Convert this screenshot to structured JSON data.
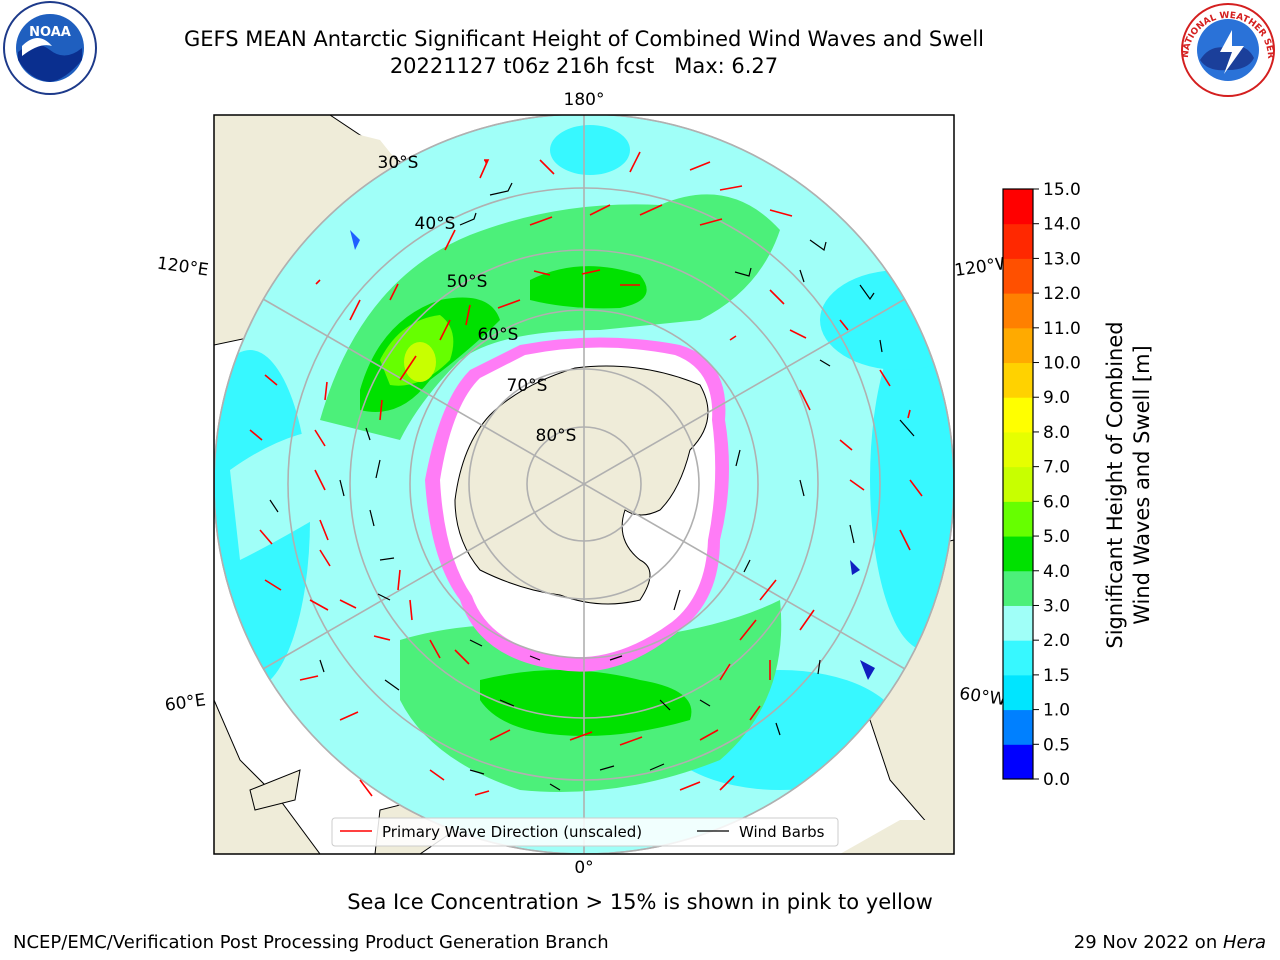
{
  "title": {
    "line1": "GEFS MEAN Antarctic Significant Height of Combined Wind Waves and Swell",
    "line2": "20221127 t06z 216h fcst   Max: 6.27"
  },
  "map": {
    "longitude_labels": {
      "top": "180°",
      "bottom": "0°",
      "upper_left": "120°E",
      "upper_right": "120°W",
      "lower_left": "60°E",
      "lower_right": "60°W"
    },
    "latitude_labels": [
      "30°S",
      "40°S",
      "50°S",
      "60°S",
      "70°S",
      "80°S"
    ],
    "legend": {
      "wave_direction": "Primary Wave Direction (unscaled)",
      "wind_barbs": "Wind Barbs"
    },
    "colors": {
      "land": "#efecd9",
      "ocean_low": "#37f8ff",
      "ocean_mid": "#a0fff8",
      "ocean_3m": "#4cf07a",
      "ocean_4m": "#00e100",
      "ice": "#ff7cf6",
      "arrow": "#ff0000"
    }
  },
  "colorbar": {
    "label_line1": "Significant Height of Combined",
    "label_line2": "Wind Waves and Swell [m]",
    "ticks": [
      "0.0",
      "0.5",
      "1.0",
      "1.5",
      "2.0",
      "3.0",
      "4.0",
      "5.0",
      "6.0",
      "7.0",
      "8.0",
      "9.0",
      "10.0",
      "11.0",
      "12.0",
      "13.0",
      "14.0",
      "15.0"
    ],
    "colors": [
      "#0000ff",
      "#0080ff",
      "#00e5ff",
      "#37f8ff",
      "#a0fff8",
      "#4cf07a",
      "#00e100",
      "#66ff00",
      "#c8ff00",
      "#e6ff00",
      "#ffff00",
      "#ffd200",
      "#ffaa00",
      "#ff8000",
      "#ff5000",
      "#ff2800",
      "#ff0000"
    ]
  },
  "logos": {
    "noaa_text": "NOAA",
    "nws_text": "NATIONAL WEATHER SERVICE"
  },
  "notes": {
    "sea_ice": "Sea Ice Concentration > 15% is shown in pink to yellow"
  },
  "footer": {
    "branch": "NCEP/EMC/Verification Post Processing Product Generation Branch",
    "date": "29 Nov 2022 on ",
    "host": "Hera"
  }
}
